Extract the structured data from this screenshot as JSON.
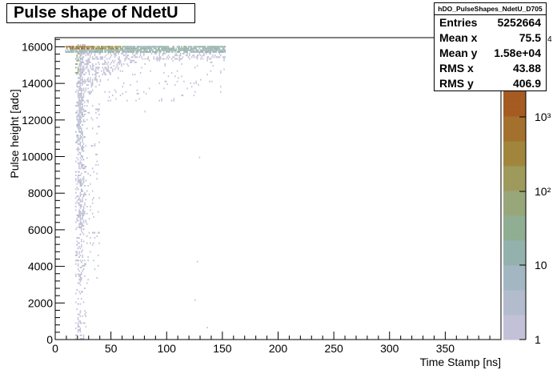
{
  "title": "Pulse shape of NdetU",
  "stats": {
    "name": "hDO_PulseShapes_NdetU_D705",
    "rows": [
      {
        "label": "Entries",
        "value": "5252664"
      },
      {
        "label": "Mean x",
        "value": "75.5"
      },
      {
        "label": "Mean y",
        "value": "1.58e+04"
      },
      {
        "label": "RMS x",
        "value": "43.88"
      },
      {
        "label": "RMS y",
        "value": "406.9"
      }
    ]
  },
  "chart_data": {
    "type": "heatmap",
    "title": "Pulse shape of NdetU",
    "xlabel": "Time Stamp [ns]",
    "ylabel": "Pulse height [adc]",
    "xlim": [
      0,
      400
    ],
    "ylim": [
      0,
      16500
    ],
    "x_ticks": [
      0,
      50,
      100,
      150,
      200,
      250,
      300,
      350
    ],
    "y_ticks": [
      0,
      2000,
      4000,
      6000,
      8000,
      10000,
      12000,
      14000,
      16000
    ],
    "z_scale": "log",
    "z_ticks": [
      "1",
      "10",
      "10²",
      "10³"
    ],
    "z_label_partial": "4",
    "colormap": [
      "#c3c1d7",
      "#a7b7c2",
      "#8fb29c",
      "#9aa870",
      "#a08b45",
      "#a2602a",
      "#9b4a1e"
    ],
    "features": [
      {
        "region": "baseline band",
        "x": [
          10,
          152
        ],
        "y": [
          15600,
          16050
        ],
        "density": "high"
      },
      {
        "region": "pulse trough",
        "x": [
          17,
          28
        ],
        "y": [
          0,
          15600
        ],
        "density": "medium"
      },
      {
        "region": "recovery tail",
        "x": [
          25,
          152
        ],
        "y": [
          13500,
          15700
        ],
        "density": "low"
      }
    ]
  }
}
